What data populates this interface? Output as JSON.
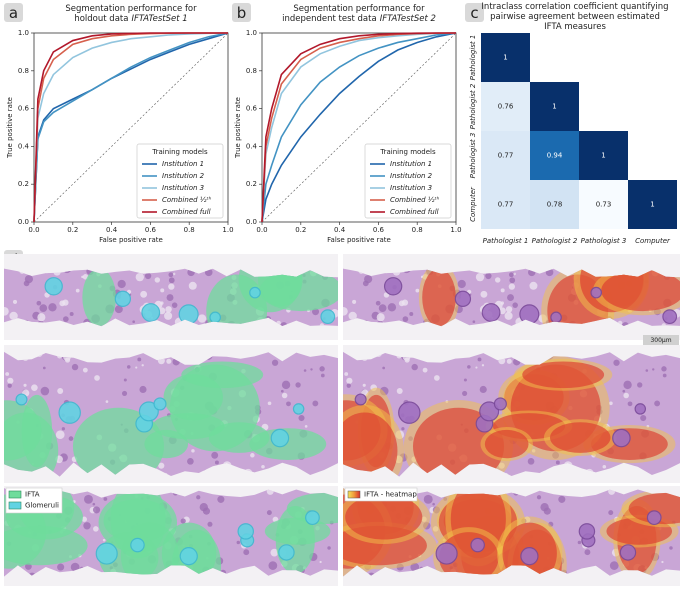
{
  "panel_labels": [
    "a",
    "b",
    "c",
    "d"
  ],
  "chart_data": [
    {
      "type": "roc",
      "title": [
        "Segmentation performance for",
        "holdout data",
        "IFTATestSet 1"
      ],
      "x_label": "False positive rate",
      "y_label": "True positive rate",
      "x": [
        0,
        0.02,
        0.05,
        0.1,
        0.2,
        0.3,
        0.4,
        0.5,
        0.6,
        0.7,
        0.8,
        0.9,
        1
      ],
      "series": [
        {
          "name": "Institution 1",
          "color": "#2166ac",
          "values": [
            0,
            0.45,
            0.54,
            0.6,
            0.65,
            0.7,
            0.76,
            0.81,
            0.86,
            0.9,
            0.94,
            0.97,
            1
          ]
        },
        {
          "name": "Institution 2",
          "color": "#4393c3",
          "values": [
            0,
            0.44,
            0.53,
            0.58,
            0.64,
            0.7,
            0.76,
            0.82,
            0.87,
            0.91,
            0.95,
            0.98,
            1
          ]
        },
        {
          "name": "Institution 3",
          "color": "#92c5de",
          "values": [
            0,
            0.55,
            0.68,
            0.78,
            0.87,
            0.92,
            0.95,
            0.97,
            0.98,
            0.99,
            0.995,
            0.998,
            1
          ]
        },
        {
          "name": "Combined ½ᵗʰ",
          "color": "#d6604d",
          "values": [
            0,
            0.6,
            0.76,
            0.86,
            0.94,
            0.97,
            0.985,
            0.993,
            0.997,
            0.999,
            1,
            1,
            1
          ]
        },
        {
          "name": "Combined full",
          "color": "#b2182b",
          "values": [
            0,
            0.65,
            0.8,
            0.9,
            0.96,
            0.985,
            0.995,
            0.998,
            1,
            1,
            1,
            1,
            1
          ]
        }
      ],
      "legend_title": "Training models",
      "legend": "lower right",
      "xlim": [
        0,
        1
      ],
      "ylim": [
        0,
        1
      ],
      "xticks": [
        {
          "value": 0,
          "label": "0.0"
        },
        0.2,
        0.4,
        0.6,
        0.8,
        {
          "value": 1,
          "label": "1.0"
        }
      ],
      "yticks": [
        {
          "value": 0,
          "label": "0.0"
        },
        0.2,
        0.4,
        0.6,
        0.8,
        {
          "value": 1,
          "label": "1.0"
        }
      ]
    },
    {
      "type": "roc",
      "title": [
        "Segmentation performance for",
        "independent test data",
        "IFTATestSet 2"
      ],
      "x_label": "False positive rate",
      "y_label": "True positive rate",
      "x": [
        0,
        0.02,
        0.05,
        0.1,
        0.2,
        0.3,
        0.4,
        0.5,
        0.6,
        0.7,
        0.8,
        0.9,
        1
      ],
      "series": [
        {
          "name": "Institution 1",
          "color": "#2166ac",
          "values": [
            0,
            0.12,
            0.2,
            0.3,
            0.45,
            0.57,
            0.68,
            0.77,
            0.85,
            0.91,
            0.95,
            0.98,
            1
          ]
        },
        {
          "name": "Institution 2",
          "color": "#4393c3",
          "values": [
            0,
            0.2,
            0.3,
            0.45,
            0.62,
            0.74,
            0.82,
            0.88,
            0.92,
            0.95,
            0.97,
            0.99,
            1
          ]
        },
        {
          "name": "Institution 3",
          "color": "#92c5de",
          "values": [
            0,
            0.36,
            0.5,
            0.68,
            0.82,
            0.89,
            0.93,
            0.96,
            0.975,
            0.985,
            0.993,
            0.998,
            1
          ]
        },
        {
          "name": "Combined ½ᵗʰ",
          "color": "#d6604d",
          "values": [
            0,
            0.4,
            0.55,
            0.73,
            0.86,
            0.92,
            0.95,
            0.97,
            0.985,
            0.993,
            0.997,
            0.999,
            1
          ]
        },
        {
          "name": "Combined full",
          "color": "#b2182b",
          "values": [
            0,
            0.45,
            0.6,
            0.78,
            0.89,
            0.94,
            0.97,
            0.985,
            0.993,
            0.997,
            0.999,
            1,
            1
          ]
        }
      ],
      "legend_title": "Training models",
      "legend": "lower right",
      "xlim": [
        0,
        1
      ],
      "ylim": [
        0,
        1
      ],
      "xticks": [
        {
          "value": 0,
          "label": "0.0"
        },
        0.2,
        0.4,
        0.6,
        0.8,
        {
          "value": 1,
          "label": "1.0"
        }
      ],
      "yticks": [
        {
          "value": 0,
          "label": "0.0"
        },
        0.2,
        0.4,
        0.6,
        0.8,
        {
          "value": 1,
          "label": "1.0"
        }
      ]
    },
    {
      "type": "heatmap",
      "title": [
        "Intraclass correlation coefficient quantifying",
        "pairwise agreement between estimated",
        "IFTA measures"
      ],
      "rows": [
        "Pathologist 1",
        "Pathologist 2",
        "Pathologist 3",
        "Computer"
      ],
      "columns": [
        "Pathologist 1",
        "Pathologist 2",
        "Pathologist 3",
        "Computer"
      ],
      "values": [
        [
          1,
          null,
          null,
          null
        ],
        [
          0.76,
          1,
          null,
          null
        ],
        [
          0.77,
          0.94,
          1,
          null
        ],
        [
          0.77,
          0.78,
          0.73,
          1
        ]
      ],
      "colormap": "Blues"
    }
  ],
  "panel_d": {
    "scale_bar": "300μm",
    "legend_left": [
      "IFTA",
      "Glomeruli"
    ],
    "legend_right": [
      "IFTA - heatmap"
    ]
  }
}
